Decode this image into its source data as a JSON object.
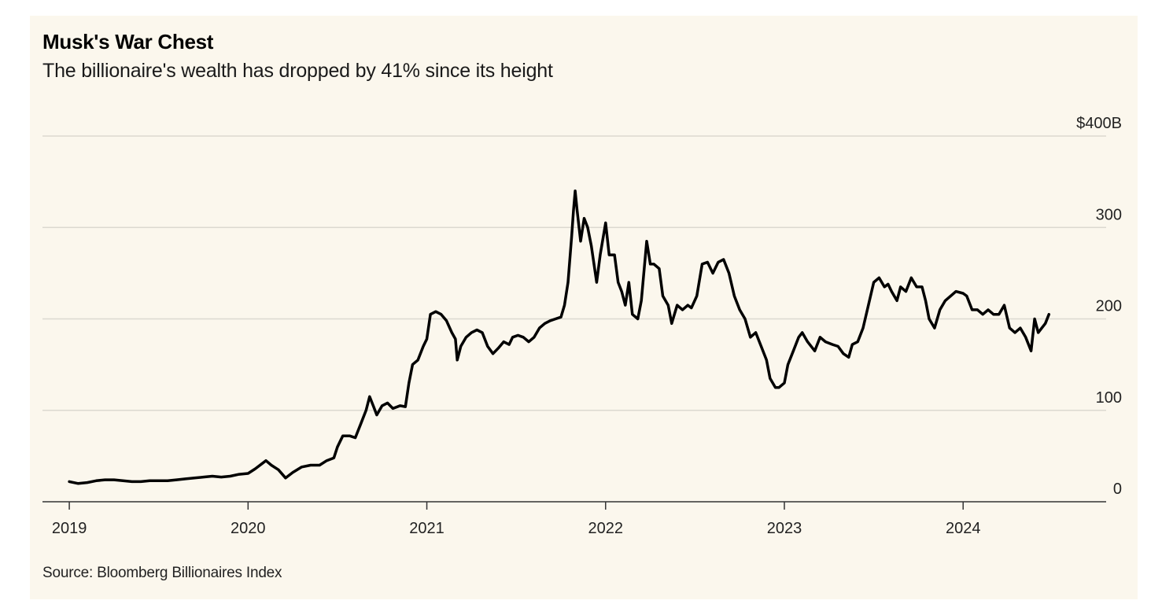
{
  "header": {
    "title": "Musk's War Chest",
    "subtitle": "The billionaire's wealth has dropped by 41% since its height"
  },
  "footer": {
    "source": "Source: Bloomberg Billionaires Index"
  },
  "colors": {
    "background": "#fbf7ed",
    "line": "#000000",
    "grid": "#dcd9d0",
    "axis": "#333333"
  },
  "chart_data": {
    "type": "line",
    "title": "Musk's War Chest",
    "subtitle": "The billionaire's wealth has dropped by 41% since its height",
    "xlabel": "",
    "ylabel": "",
    "xlim": [
      2019.0,
      2024.75
    ],
    "ylim": [
      0,
      400
    ],
    "grid": true,
    "y_ticks": [
      {
        "value": 0,
        "label": "0"
      },
      {
        "value": 100,
        "label": "100"
      },
      {
        "value": 200,
        "label": "200"
      },
      {
        "value": 300,
        "label": "300"
      },
      {
        "value": 400,
        "label": "$400B"
      }
    ],
    "x_ticks": [
      {
        "value": 2019,
        "label": "2019"
      },
      {
        "value": 2020,
        "label": "2020"
      },
      {
        "value": 2021,
        "label": "2021"
      },
      {
        "value": 2022,
        "label": "2022"
      },
      {
        "value": 2023,
        "label": "2023"
      },
      {
        "value": 2024,
        "label": "2024"
      }
    ],
    "series": [
      {
        "name": "",
        "points": [
          [
            2019.0,
            22
          ],
          [
            2019.05,
            20
          ],
          [
            2019.1,
            21
          ],
          [
            2019.15,
            23
          ],
          [
            2019.2,
            24
          ],
          [
            2019.25,
            24
          ],
          [
            2019.3,
            23
          ],
          [
            2019.35,
            22
          ],
          [
            2019.4,
            22
          ],
          [
            2019.45,
            23
          ],
          [
            2019.5,
            23
          ],
          [
            2019.55,
            23
          ],
          [
            2019.6,
            24
          ],
          [
            2019.65,
            25
          ],
          [
            2019.7,
            26
          ],
          [
            2019.75,
            27
          ],
          [
            2019.8,
            28
          ],
          [
            2019.85,
            27
          ],
          [
            2019.9,
            28
          ],
          [
            2019.95,
            30
          ],
          [
            2020.0,
            31
          ],
          [
            2020.04,
            36
          ],
          [
            2020.08,
            42
          ],
          [
            2020.1,
            45
          ],
          [
            2020.13,
            40
          ],
          [
            2020.17,
            35
          ],
          [
            2020.21,
            26
          ],
          [
            2020.25,
            32
          ],
          [
            2020.3,
            38
          ],
          [
            2020.35,
            40
          ],
          [
            2020.4,
            40
          ],
          [
            2020.44,
            45
          ],
          [
            2020.48,
            48
          ],
          [
            2020.5,
            60
          ],
          [
            2020.53,
            72
          ],
          [
            2020.57,
            72
          ],
          [
            2020.6,
            70
          ],
          [
            2020.63,
            85
          ],
          [
            2020.66,
            100
          ],
          [
            2020.68,
            115
          ],
          [
            2020.7,
            105
          ],
          [
            2020.72,
            95
          ],
          [
            2020.75,
            105
          ],
          [
            2020.78,
            108
          ],
          [
            2020.81,
            102
          ],
          [
            2020.85,
            105
          ],
          [
            2020.88,
            104
          ],
          [
            2020.9,
            130
          ],
          [
            2020.92,
            150
          ],
          [
            2020.95,
            155
          ],
          [
            2020.98,
            170
          ],
          [
            2021.0,
            178
          ],
          [
            2021.02,
            205
          ],
          [
            2021.05,
            208
          ],
          [
            2021.08,
            205
          ],
          [
            2021.11,
            198
          ],
          [
            2021.14,
            185
          ],
          [
            2021.16,
            178
          ],
          [
            2021.17,
            155
          ],
          [
            2021.19,
            170
          ],
          [
            2021.22,
            180
          ],
          [
            2021.25,
            185
          ],
          [
            2021.28,
            188
          ],
          [
            2021.31,
            185
          ],
          [
            2021.34,
            170
          ],
          [
            2021.37,
            162
          ],
          [
            2021.4,
            168
          ],
          [
            2021.43,
            175
          ],
          [
            2021.46,
            172
          ],
          [
            2021.48,
            180
          ],
          [
            2021.51,
            182
          ],
          [
            2021.54,
            180
          ],
          [
            2021.57,
            175
          ],
          [
            2021.6,
            180
          ],
          [
            2021.63,
            190
          ],
          [
            2021.66,
            195
          ],
          [
            2021.69,
            198
          ],
          [
            2021.72,
            200
          ],
          [
            2021.75,
            202
          ],
          [
            2021.77,
            215
          ],
          [
            2021.79,
            240
          ],
          [
            2021.81,
            290
          ],
          [
            2021.82,
            318
          ],
          [
            2021.83,
            340
          ],
          [
            2021.84,
            320
          ],
          [
            2021.86,
            285
          ],
          [
            2021.88,
            310
          ],
          [
            2021.9,
            300
          ],
          [
            2021.92,
            280
          ],
          [
            2021.95,
            240
          ],
          [
            2021.97,
            270
          ],
          [
            2022.0,
            305
          ],
          [
            2022.02,
            270
          ],
          [
            2022.05,
            270
          ],
          [
            2022.07,
            240
          ],
          [
            2022.09,
            230
          ],
          [
            2022.11,
            215
          ],
          [
            2022.13,
            240
          ],
          [
            2022.15,
            205
          ],
          [
            2022.18,
            200
          ],
          [
            2022.2,
            220
          ],
          [
            2022.23,
            285
          ],
          [
            2022.25,
            260
          ],
          [
            2022.27,
            260
          ],
          [
            2022.3,
            255
          ],
          [
            2022.32,
            225
          ],
          [
            2022.35,
            215
          ],
          [
            2022.37,
            195
          ],
          [
            2022.4,
            215
          ],
          [
            2022.43,
            210
          ],
          [
            2022.46,
            215
          ],
          [
            2022.48,
            212
          ],
          [
            2022.51,
            225
          ],
          [
            2022.54,
            260
          ],
          [
            2022.57,
            262
          ],
          [
            2022.6,
            250
          ],
          [
            2022.63,
            262
          ],
          [
            2022.66,
            265
          ],
          [
            2022.69,
            250
          ],
          [
            2022.72,
            225
          ],
          [
            2022.75,
            210
          ],
          [
            2022.78,
            200
          ],
          [
            2022.81,
            180
          ],
          [
            2022.84,
            185
          ],
          [
            2022.87,
            170
          ],
          [
            2022.9,
            155
          ],
          [
            2022.92,
            135
          ],
          [
            2022.95,
            125
          ],
          [
            2022.97,
            125
          ],
          [
            2023.0,
            130
          ],
          [
            2023.02,
            150
          ],
          [
            2023.05,
            165
          ],
          [
            2023.08,
            180
          ],
          [
            2023.1,
            185
          ],
          [
            2023.13,
            175
          ],
          [
            2023.17,
            165
          ],
          [
            2023.2,
            180
          ],
          [
            2023.23,
            175
          ],
          [
            2023.27,
            172
          ],
          [
            2023.3,
            170
          ],
          [
            2023.33,
            162
          ],
          [
            2023.36,
            158
          ],
          [
            2023.38,
            172
          ],
          [
            2023.41,
            175
          ],
          [
            2023.44,
            190
          ],
          [
            2023.47,
            215
          ],
          [
            2023.5,
            240
          ],
          [
            2023.53,
            245
          ],
          [
            2023.56,
            235
          ],
          [
            2023.58,
            238
          ],
          [
            2023.6,
            230
          ],
          [
            2023.63,
            220
          ],
          [
            2023.65,
            235
          ],
          [
            2023.68,
            230
          ],
          [
            2023.71,
            245
          ],
          [
            2023.74,
            235
          ],
          [
            2023.77,
            235
          ],
          [
            2023.79,
            220
          ],
          [
            2023.81,
            200
          ],
          [
            2023.84,
            190
          ],
          [
            2023.87,
            210
          ],
          [
            2023.9,
            220
          ],
          [
            2023.93,
            225
          ],
          [
            2023.96,
            230
          ],
          [
            2024.0,
            228
          ],
          [
            2024.02,
            225
          ],
          [
            2024.05,
            210
          ],
          [
            2024.08,
            210
          ],
          [
            2024.11,
            205
          ],
          [
            2024.14,
            210
          ],
          [
            2024.17,
            205
          ],
          [
            2024.2,
            205
          ],
          [
            2024.23,
            215
          ],
          [
            2024.26,
            190
          ],
          [
            2024.29,
            185
          ],
          [
            2024.32,
            190
          ],
          [
            2024.35,
            180
          ],
          [
            2024.38,
            165
          ],
          [
            2024.4,
            200
          ],
          [
            2024.42,
            185
          ],
          [
            2024.44,
            190
          ],
          [
            2024.46,
            195
          ],
          [
            2024.48,
            205
          ]
        ]
      }
    ]
  }
}
